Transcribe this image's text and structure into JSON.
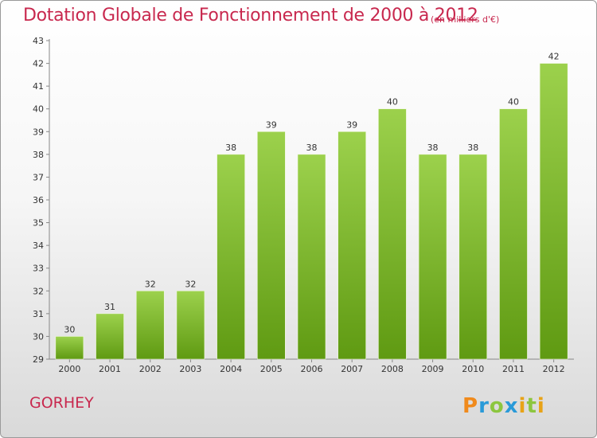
{
  "header": {
    "title": "Dotation Globale de Fonctionnement de 2000 à 2012",
    "subtitle": "(en milliers d'€)"
  },
  "footer": {
    "commune": "GORHEY",
    "logo_text": "Proxiti"
  },
  "colors": {
    "title": "#c8284e",
    "bar_light": "#9cd14c",
    "bar_dark": "#5f9a12",
    "logo_P": "#f08a1c",
    "logo_r": "#2a9ad8",
    "logo_o": "#8cc63f",
    "logo_x": "#2a9ad8",
    "logo_i": "#e8a317",
    "logo_t": "#8cc63f"
  },
  "chart_data": {
    "type": "bar",
    "title": "Dotation Globale de Fonctionnement de 2000 à 2012",
    "subtitle": "(en milliers d'€)",
    "categories": [
      "2000",
      "2001",
      "2002",
      "2003",
      "2004",
      "2005",
      "2006",
      "2007",
      "2008",
      "2009",
      "2010",
      "2011",
      "2012"
    ],
    "values": [
      30,
      31,
      32,
      32,
      38,
      39,
      38,
      39,
      40,
      38,
      38,
      40,
      42
    ],
    "ylim": [
      29,
      43
    ],
    "yticks": [
      29,
      30,
      31,
      32,
      33,
      34,
      35,
      36,
      37,
      38,
      39,
      40,
      41,
      42,
      43
    ],
    "grid": false,
    "legend": "none"
  }
}
